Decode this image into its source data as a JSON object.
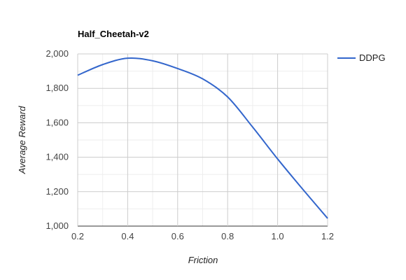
{
  "chart_data": {
    "type": "line",
    "title": "Half_Cheetah-v2",
    "xlabel": "Friction",
    "ylabel": "Average Reward",
    "xlim": [
      0.2,
      1.2
    ],
    "ylim": [
      1000,
      2000
    ],
    "x_ticks": [
      0.2,
      0.4,
      0.6,
      0.8,
      1.0,
      1.2
    ],
    "x_tick_labels": [
      "0.2",
      "0.4",
      "0.6",
      "0.8",
      "1.0",
      "1.2"
    ],
    "y_ticks": [
      1000,
      1200,
      1400,
      1600,
      1800,
      2000
    ],
    "y_tick_labels": [
      "1,000",
      "1,200",
      "1,400",
      "1,600",
      "1,800",
      "2,000"
    ],
    "grid": true,
    "legend_position": "top-right",
    "series": [
      {
        "name": "DDPG",
        "color": "#3366cc",
        "x": [
          0.2,
          0.3,
          0.4,
          0.5,
          0.6,
          0.7,
          0.8,
          0.9,
          1.0,
          1.1,
          1.2
        ],
        "y": [
          1876,
          1938,
          1975,
          1960,
          1915,
          1855,
          1750,
          1575,
          1390,
          1215,
          1045
        ]
      }
    ]
  }
}
